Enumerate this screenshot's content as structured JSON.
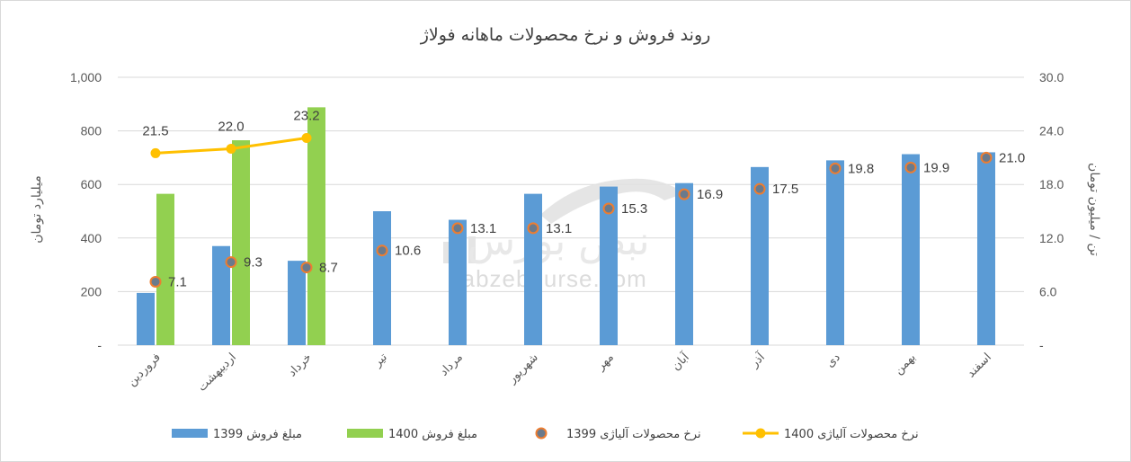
{
  "chart_data": {
    "type": "bar",
    "title": "روند فروش و نرخ محصولات ماهانه فولاژ",
    "categories": [
      "فروردین",
      "اردیبهشت",
      "خرداد",
      "تیر",
      "مرداد",
      "شهریور",
      "مهر",
      "آبان",
      "آذر",
      "دی",
      "بهمن",
      "اسفند"
    ],
    "y_left": {
      "label": "میلیارد تومان",
      "range": [
        0,
        1000
      ],
      "ticks": [
        "-",
        "200",
        "400",
        "600",
        "800",
        "1,000"
      ],
      "tick_values": [
        0,
        200,
        400,
        600,
        800,
        1000
      ]
    },
    "y_right": {
      "label": "تن / میلیون تومان",
      "range": [
        0,
        30
      ],
      "ticks": [
        "-",
        "6.0",
        "12.0",
        "18.0",
        "24.0",
        "30.0"
      ],
      "tick_values": [
        0,
        6,
        12,
        18,
        24,
        30
      ]
    },
    "grid": true,
    "legend_position": "bottom",
    "series": [
      {
        "name": "مبلغ فروش 1399",
        "kind": "bar",
        "axis": "left",
        "color": "#5b9bd5",
        "values": [
          195,
          370,
          315,
          500,
          468,
          565,
          592,
          605,
          665,
          690,
          713,
          720
        ]
      },
      {
        "name": "مبلغ فروش 1400",
        "kind": "bar",
        "axis": "left",
        "color": "#92d050",
        "values": [
          565,
          765,
          888,
          null,
          null,
          null,
          null,
          null,
          null,
          null,
          null,
          null
        ]
      },
      {
        "name": "نرخ محصولات آلیاژی 1399",
        "kind": "marker",
        "axis": "right",
        "color": "#ed7d31",
        "inner_color": "#6a7a8c",
        "values": [
          7.1,
          9.3,
          8.7,
          10.6,
          13.1,
          13.1,
          15.3,
          16.9,
          17.5,
          19.8,
          19.9,
          21.0
        ],
        "labels": [
          "7.1",
          "9.3",
          "8.7",
          "10.6",
          "13.1",
          "13.1",
          "15.3",
          "16.9",
          "17.5",
          "19.8",
          "19.9",
          "21.0"
        ]
      },
      {
        "name": "نرخ محصولات آلیاژی 1400",
        "kind": "line",
        "axis": "right",
        "color": "#ffc000",
        "values": [
          21.5,
          22.0,
          23.2,
          null,
          null,
          null,
          null,
          null,
          null,
          null,
          null,
          null
        ],
        "labels": [
          "21.5",
          "22.0",
          "23.2"
        ]
      }
    ]
  },
  "watermark": {
    "logo_text": "نبض بورس",
    "url": "nabzebourse.com"
  }
}
